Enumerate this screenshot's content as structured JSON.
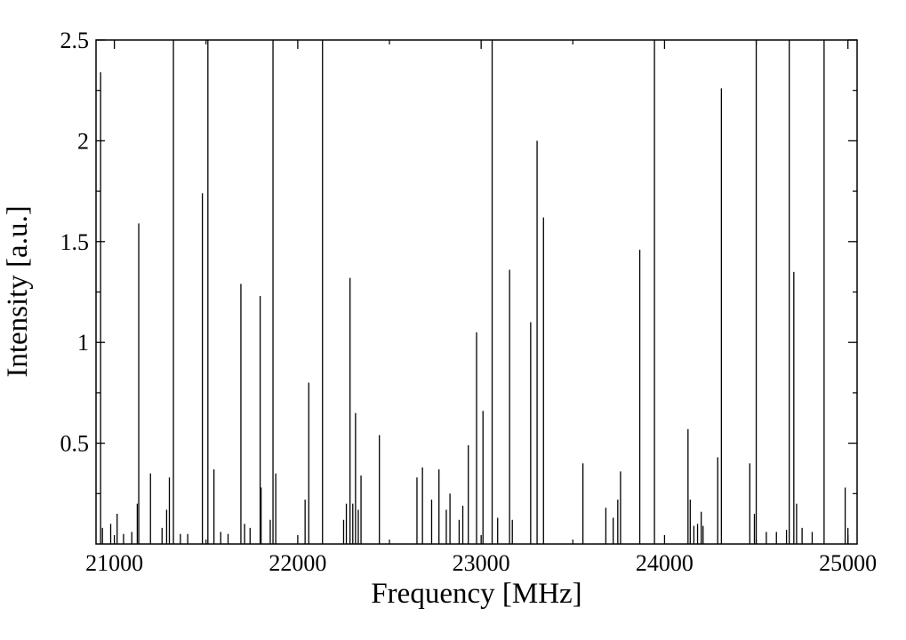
{
  "chart_data": {
    "type": "line",
    "title": "",
    "xlabel": "Frequency [MHz]",
    "ylabel": "Intensity [a.u.]",
    "xlim": [
      20900,
      25050
    ],
    "ylim": [
      0,
      2.5
    ],
    "x_ticks": [
      21000,
      22000,
      23000,
      24000,
      25000
    ],
    "x_tick_labels": [
      "21000",
      "22000",
      "23000",
      "24000",
      "25000"
    ],
    "y_ticks": [
      0.5,
      1,
      1.5,
      2,
      2.5
    ],
    "y_tick_labels": [
      "0.5",
      "1",
      "1.5",
      "2",
      "2.5"
    ],
    "grid": false,
    "legend": "none",
    "line_color": "#000000",
    "series": [
      {
        "values": [
          {
            "x": 20925,
            "y": 2.34
          },
          {
            "x": 20935,
            "y": 0.08
          },
          {
            "x": 20980,
            "y": 0.1
          },
          {
            "x": 21015,
            "y": 0.15
          },
          {
            "x": 21050,
            "y": 0.05
          },
          {
            "x": 21095,
            "y": 0.06
          },
          {
            "x": 21125,
            "y": 0.2
          },
          {
            "x": 21133,
            "y": 1.59
          },
          {
            "x": 21197,
            "y": 0.35
          },
          {
            "x": 21260,
            "y": 0.08
          },
          {
            "x": 21285,
            "y": 0.17
          },
          {
            "x": 21300,
            "y": 0.33
          },
          {
            "x": 21322,
            "y": 2.5
          },
          {
            "x": 21360,
            "y": 0.05
          },
          {
            "x": 21400,
            "y": 0.05
          },
          {
            "x": 21480,
            "y": 1.74
          },
          {
            "x": 21510,
            "y": 2.5
          },
          {
            "x": 21543,
            "y": 0.37
          },
          {
            "x": 21580,
            "y": 0.06
          },
          {
            "x": 21620,
            "y": 0.05
          },
          {
            "x": 21690,
            "y": 1.29
          },
          {
            "x": 21710,
            "y": 0.1
          },
          {
            "x": 21740,
            "y": 0.08
          },
          {
            "x": 21795,
            "y": 1.23
          },
          {
            "x": 21800,
            "y": 0.28
          },
          {
            "x": 21850,
            "y": 0.12
          },
          {
            "x": 21865,
            "y": 2.5
          },
          {
            "x": 21880,
            "y": 0.35
          },
          {
            "x": 22040,
            "y": 0.22
          },
          {
            "x": 22060,
            "y": 0.8
          },
          {
            "x": 22135,
            "y": 2.5
          },
          {
            "x": 22250,
            "y": 0.12
          },
          {
            "x": 22265,
            "y": 0.2
          },
          {
            "x": 22285,
            "y": 1.32
          },
          {
            "x": 22300,
            "y": 0.2
          },
          {
            "x": 22315,
            "y": 0.65
          },
          {
            "x": 22330,
            "y": 0.17
          },
          {
            "x": 22345,
            "y": 0.34
          },
          {
            "x": 22445,
            "y": 0.54
          },
          {
            "x": 22650,
            "y": 0.33
          },
          {
            "x": 22680,
            "y": 0.38
          },
          {
            "x": 22730,
            "y": 0.22
          },
          {
            "x": 22770,
            "y": 0.37
          },
          {
            "x": 22810,
            "y": 0.17
          },
          {
            "x": 22830,
            "y": 0.25
          },
          {
            "x": 22880,
            "y": 0.12
          },
          {
            "x": 22900,
            "y": 0.19
          },
          {
            "x": 22930,
            "y": 0.49
          },
          {
            "x": 22975,
            "y": 1.05
          },
          {
            "x": 23010,
            "y": 0.66
          },
          {
            "x": 23060,
            "y": 2.5
          },
          {
            "x": 23090,
            "y": 0.13
          },
          {
            "x": 23155,
            "y": 1.36
          },
          {
            "x": 23170,
            "y": 0.12
          },
          {
            "x": 23270,
            "y": 1.1
          },
          {
            "x": 23305,
            "y": 2.0
          },
          {
            "x": 23340,
            "y": 1.62
          },
          {
            "x": 23555,
            "y": 0.4
          },
          {
            "x": 23680,
            "y": 0.18
          },
          {
            "x": 23720,
            "y": 0.13
          },
          {
            "x": 23745,
            "y": 0.22
          },
          {
            "x": 23760,
            "y": 0.36
          },
          {
            "x": 23865,
            "y": 1.46
          },
          {
            "x": 23945,
            "y": 2.5
          },
          {
            "x": 24128,
            "y": 0.57
          },
          {
            "x": 24140,
            "y": 0.22
          },
          {
            "x": 24160,
            "y": 0.09
          },
          {
            "x": 24180,
            "y": 0.1
          },
          {
            "x": 24200,
            "y": 0.16
          },
          {
            "x": 24210,
            "y": 0.09
          },
          {
            "x": 24290,
            "y": 0.43
          },
          {
            "x": 24310,
            "y": 2.26
          },
          {
            "x": 24465,
            "y": 0.4
          },
          {
            "x": 24490,
            "y": 0.15
          },
          {
            "x": 24500,
            "y": 2.5
          },
          {
            "x": 24555,
            "y": 0.06
          },
          {
            "x": 24610,
            "y": 0.06
          },
          {
            "x": 24665,
            "y": 0.07
          },
          {
            "x": 24680,
            "y": 2.5
          },
          {
            "x": 24705,
            "y": 1.35
          },
          {
            "x": 24720,
            "y": 0.2
          },
          {
            "x": 24750,
            "y": 0.08
          },
          {
            "x": 24805,
            "y": 0.06
          },
          {
            "x": 24870,
            "y": 2.5
          },
          {
            "x": 24985,
            "y": 0.28
          },
          {
            "x": 25000,
            "y": 0.08
          }
        ]
      }
    ]
  }
}
